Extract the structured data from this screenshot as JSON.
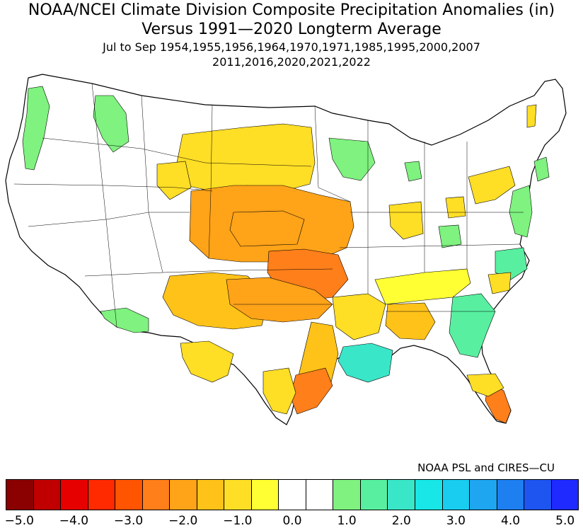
{
  "title": {
    "line1": "NOAA/NCEI Climate Division Composite Precipitation Anomalies (in)",
    "line2": "Versus 1991—2020 Longterm Average",
    "subtitle1": "Jul to Sep  1954,1955,1956,1964,1970,1971,1985,1995,2000,2007",
    "subtitle2": "2011,2016,2020,2021,2022"
  },
  "credit": "NOAA PSL and CIRES—CU",
  "colorbar": {
    "colors": [
      "#8b0000",
      "#c00000",
      "#e60000",
      "#ff2a00",
      "#ff5500",
      "#ff7f1a",
      "#ffa319",
      "#ffc219",
      "#ffde26",
      "#ffff33",
      "#ffffff",
      "#ffffff",
      "#7ff27f",
      "#58f0a0",
      "#3ae6c8",
      "#19e6e6",
      "#19cdf0",
      "#1ea6f0",
      "#1e7ff0",
      "#1e55f0",
      "#1e2aff"
    ],
    "tick_labels": [
      "−5.0",
      "−4.0",
      "−3.0",
      "−2.0",
      "−1.0",
      "0.0",
      "1.0",
      "2.0",
      "3.0",
      "4.0",
      "5.0"
    ]
  },
  "map": {
    "region": "Contiguous United States climate divisions",
    "anomaly_regions": [
      {
        "name": "Washington coast / western WA",
        "category": "+0.5 to +1.0",
        "color": "#7ff27f"
      },
      {
        "name": "Northern Idaho",
        "category": "+0.5 to +1.0",
        "color": "#7ff27f"
      },
      {
        "name": "Montana / Dakotas / Wyoming",
        "category": "-0.5 to -1.0",
        "color": "#ffde26"
      },
      {
        "name": "Nebraska / Kansas / Oklahoma core",
        "category": "-1.5 to -2.5",
        "color": "#ffa319"
      },
      {
        "name": "Central Oklahoma / Arkansas",
        "category": "-2.5 to -3.0",
        "color": "#ff7f1a"
      },
      {
        "name": "Colorado / New Mexico",
        "category": "-1.0 to -1.5",
        "color": "#ffc219"
      },
      {
        "name": "Texas",
        "category": "-0.5 to -2.0",
        "color": "#ffc219"
      },
      {
        "name": "Louisiana / Mississippi coast",
        "category": "+1.5 to +2.0",
        "color": "#3ae6c8"
      },
      {
        "name": "Southeast Florida",
        "category": "-2.0 to -2.5",
        "color": "#ff7f1a"
      },
      {
        "name": "Arizona",
        "category": "+0.5 to +1.0",
        "color": "#7ff27f"
      },
      {
        "name": "Minnesota / Wisconsin",
        "category": "+0.5 to +1.0",
        "color": "#7ff27f"
      },
      {
        "name": "Carolinas / Georgia",
        "category": "+0.5 to +1.5",
        "color": "#58f0a0"
      },
      {
        "name": "Tennessee Valley / Ohio Valley",
        "category": "-0.5 to -1.0",
        "color": "#ffff33"
      },
      {
        "name": "Mid-Atlantic",
        "category": "+0.5 to +1.0",
        "color": "#7ff27f"
      }
    ]
  }
}
